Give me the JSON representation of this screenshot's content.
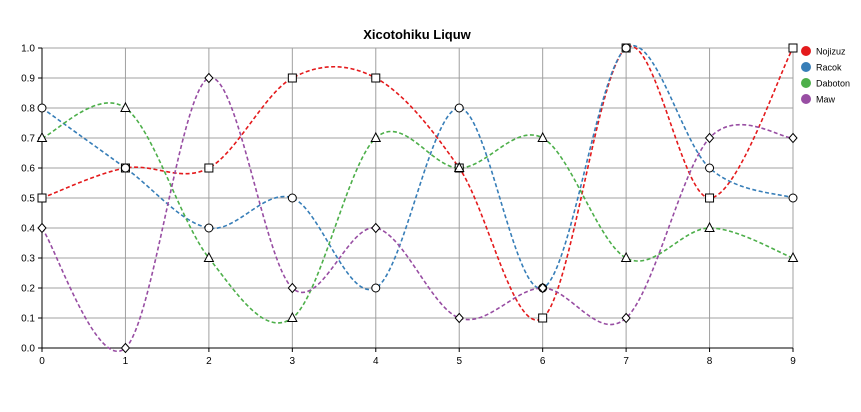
{
  "chart_data": {
    "type": "line",
    "title": "Xicotohiku Liquw",
    "xlabel": "",
    "ylabel": "",
    "x": [
      0,
      1,
      2,
      3,
      4,
      5,
      6,
      7,
      8,
      9
    ],
    "xlim": [
      0,
      9
    ],
    "ylim": [
      0,
      1.0
    ],
    "xticks": [
      "0",
      "1",
      "2",
      "3",
      "4",
      "5",
      "6",
      "7",
      "8",
      "9"
    ],
    "yticks": [
      "0.0",
      "0.1",
      "0.2",
      "0.3",
      "0.4",
      "0.5",
      "0.6",
      "0.7",
      "0.8",
      "0.9",
      "1.0"
    ],
    "grid": true,
    "legend_position": "top-right",
    "line_style": "dashed-smooth",
    "series": [
      {
        "name": "Nojizuz",
        "color": "#e41a1c",
        "marker": "square",
        "values": [
          0.5,
          0.6,
          0.6,
          0.9,
          0.9,
          0.6,
          0.1,
          1.0,
          0.5,
          1.0
        ]
      },
      {
        "name": "Racok",
        "color": "#377eb8",
        "marker": "circle",
        "values": [
          0.8,
          0.6,
          0.4,
          0.5,
          0.2,
          0.8,
          0.2,
          1.0,
          0.6,
          0.5
        ]
      },
      {
        "name": "Daboton",
        "color": "#4daf4a",
        "marker": "triangle",
        "values": [
          0.7,
          0.8,
          0.3,
          0.1,
          0.7,
          0.6,
          0.7,
          0.3,
          0.4,
          0.3
        ]
      },
      {
        "name": "Maw",
        "color": "#984ea3",
        "marker": "diamond",
        "values": [
          0.4,
          0.0,
          0.9,
          0.2,
          0.4,
          0.1,
          0.2,
          0.1,
          0.7,
          0.7
        ]
      }
    ]
  }
}
